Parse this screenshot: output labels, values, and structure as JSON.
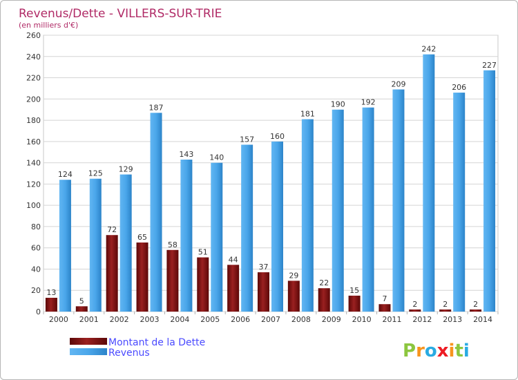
{
  "chart_data": {
    "type": "bar",
    "title": "Revenus/Dette - VILLERS-SUR-TRIE",
    "subtitle": "(en milliers d'€)",
    "categories": [
      "2000",
      "2001",
      "2002",
      "2003",
      "2004",
      "2005",
      "2006",
      "2007",
      "2008",
      "2009",
      "2010",
      "2011",
      "2012",
      "2013",
      "2014"
    ],
    "series": [
      {
        "name": "Montant de la Dette",
        "color": "#7a0f0f",
        "values": [
          13,
          5,
          72,
          65,
          58,
          51,
          44,
          37,
          29,
          22,
          15,
          7,
          2,
          2,
          2
        ]
      },
      {
        "name": "Revenus",
        "color": "#3d99e0",
        "values": [
          124,
          125,
          129,
          187,
          143,
          140,
          157,
          160,
          181,
          190,
          192,
          209,
          242,
          206,
          227
        ]
      }
    ],
    "ylim": [
      0,
      260
    ],
    "ytick_step": 20,
    "yticks": [
      "0",
      "20",
      "40",
      "60",
      "80",
      "100",
      "120",
      "140",
      "160",
      "180",
      "200",
      "220",
      "240",
      "260"
    ],
    "grid": true,
    "legend_position": "bottom-left",
    "xlabel": "",
    "ylabel": ""
  },
  "brand": {
    "letters": [
      "P",
      "r",
      "o",
      "x",
      "i",
      "t",
      "i"
    ],
    "colors": [
      "#8cc63f",
      "#f7941d",
      "#29abe2",
      "#ed1c24",
      "#f7941d",
      "#8cc63f",
      "#29abe2"
    ]
  }
}
